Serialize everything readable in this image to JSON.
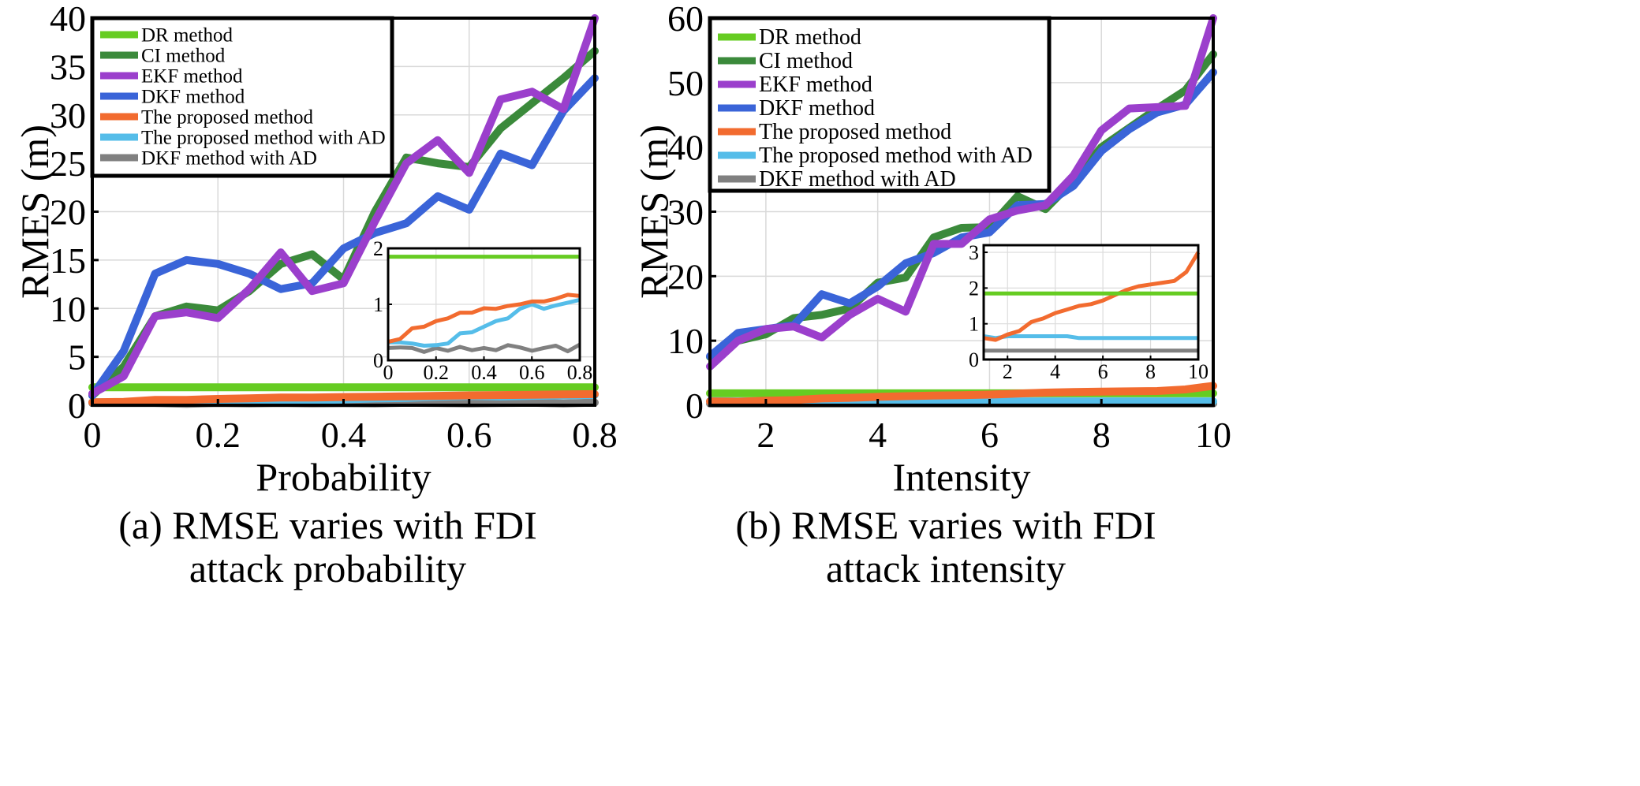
{
  "chart_data": [
    {
      "type": "line",
      "caption": [
        "(a) RMSE varies with FDI",
        "attack probability"
      ],
      "xlabel": "Probability",
      "ylabel": "RMES (m)",
      "xlim": [
        0,
        0.8
      ],
      "ylim": [
        0,
        40
      ],
      "xticks": [
        "0",
        "0.2",
        "0.4",
        "0.6",
        "0.8"
      ],
      "yticks": [
        "0",
        "5",
        "10",
        "15",
        "20",
        "25",
        "30",
        "35",
        "40"
      ],
      "grid": true,
      "legend_position": "top-left",
      "x": [
        0,
        0.05,
        0.1,
        0.15,
        0.2,
        0.25,
        0.3,
        0.35,
        0.4,
        0.45,
        0.5,
        0.55,
        0.6,
        0.65,
        0.7,
        0.75,
        0.8
      ],
      "series": [
        {
          "name": "DR method",
          "color": "#66cc22",
          "values": [
            1.85,
            1.85,
            1.85,
            1.85,
            1.85,
            1.85,
            1.85,
            1.85,
            1.85,
            1.85,
            1.85,
            1.85,
            1.85,
            1.85,
            1.85,
            1.85,
            1.85
          ]
        },
        {
          "name": "CI method",
          "color": "#3b8a3b",
          "values": [
            1.0,
            4.0,
            9.2,
            10.2,
            9.8,
            11.8,
            14.6,
            15.6,
            13.0,
            20.0,
            25.6,
            25.0,
            24.6,
            28.6,
            31.2,
            33.8,
            36.6
          ]
        },
        {
          "name": "EKF method",
          "color": "#9b3fcc",
          "values": [
            1.2,
            3.0,
            9.2,
            9.6,
            9.0,
            12.0,
            15.8,
            11.8,
            12.6,
            19.0,
            25.0,
            27.4,
            24.0,
            31.6,
            32.4,
            30.6,
            40.0
          ]
        },
        {
          "name": "DKF method",
          "color": "#3a64d8",
          "values": [
            1.0,
            5.6,
            13.6,
            15.0,
            14.6,
            13.6,
            12.0,
            12.6,
            16.2,
            17.8,
            18.8,
            21.6,
            20.2,
            26.0,
            24.8,
            30.4,
            33.8
          ]
        },
        {
          "name": "The proposed method",
          "color": "#f26b2f",
          "values": [
            0.3,
            0.35,
            0.55,
            0.55,
            0.65,
            0.72,
            0.8,
            0.8,
            0.85,
            0.88,
            0.92,
            0.97,
            1.02,
            1.05,
            1.08,
            1.12,
            1.15
          ]
        },
        {
          "name": "The proposed method with AD",
          "color": "#55bde9",
          "values": [
            0.3,
            0.3,
            0.28,
            0.25,
            0.27,
            0.3,
            0.45,
            0.5,
            0.6,
            0.7,
            0.75,
            0.88,
            0.95,
            0.9,
            0.97,
            1.02,
            1.07
          ]
        },
        {
          "name": "DKF method with AD",
          "color": "#808080",
          "values": [
            0.22,
            0.22,
            0.22,
            0.15,
            0.22,
            0.18,
            0.22,
            0.18,
            0.2,
            0.18,
            0.25,
            0.22,
            0.18,
            0.22,
            0.25,
            0.18,
            0.28
          ]
        }
      ],
      "inset": {
        "xlim": [
          0,
          0.8
        ],
        "ylim": [
          0,
          2
        ],
        "xticks": [
          "0",
          "0.2",
          "0.4",
          "0.6",
          "0.8"
        ],
        "yticks": [
          "0",
          "1",
          "2"
        ],
        "x": [
          0,
          0.05,
          0.1,
          0.15,
          0.2,
          0.25,
          0.3,
          0.35,
          0.4,
          0.45,
          0.5,
          0.55,
          0.6,
          0.65,
          0.7,
          0.75,
          0.8
        ],
        "series": [
          {
            "name": "DR method",
            "color": "#66cc22",
            "values": [
              1.85,
              1.85,
              1.85,
              1.85,
              1.85,
              1.85,
              1.85,
              1.85,
              1.85,
              1.85,
              1.85,
              1.85,
              1.85,
              1.85,
              1.85,
              1.85,
              1.85
            ]
          },
          {
            "name": "The proposed method",
            "color": "#f26b2f",
            "values": [
              0.33,
              0.38,
              0.57,
              0.6,
              0.7,
              0.75,
              0.85,
              0.85,
              0.93,
              0.92,
              0.97,
              1.0,
              1.05,
              1.05,
              1.1,
              1.17,
              1.15
            ]
          },
          {
            "name": "The proposed method with AD",
            "color": "#55bde9",
            "values": [
              0.32,
              0.32,
              0.3,
              0.26,
              0.27,
              0.3,
              0.48,
              0.5,
              0.6,
              0.7,
              0.75,
              0.92,
              1.0,
              0.92,
              0.98,
              1.03,
              1.08
            ]
          },
          {
            "name": "DKF method with AD",
            "color": "#808080",
            "values": [
              0.22,
              0.23,
              0.22,
              0.15,
              0.22,
              0.17,
              0.24,
              0.18,
              0.22,
              0.18,
              0.27,
              0.23,
              0.17,
              0.22,
              0.26,
              0.16,
              0.28
            ]
          }
        ]
      }
    },
    {
      "type": "line",
      "caption": [
        "(b) RMSE varies with FDI",
        "attack intensity"
      ],
      "xlabel": "Intensity",
      "ylabel": "RMES (m)",
      "xlim": [
        1,
        10
      ],
      "ylim": [
        0,
        60
      ],
      "xticks": [
        "2",
        "4",
        "6",
        "8",
        "10"
      ],
      "yticks": [
        "0",
        "10",
        "20",
        "30",
        "40",
        "50",
        "60"
      ],
      "grid": true,
      "legend_position": "top-left",
      "x": [
        1,
        1.5,
        2,
        2.5,
        3,
        3.5,
        4,
        4.5,
        5,
        5.5,
        6,
        6.5,
        7,
        7.5,
        8,
        8.5,
        9,
        9.5,
        10
      ],
      "series": [
        {
          "name": "DR method",
          "color": "#66cc22",
          "values": [
            1.85,
            1.85,
            1.85,
            1.85,
            1.85,
            1.85,
            1.85,
            1.85,
            1.85,
            1.85,
            1.85,
            1.85,
            1.85,
            1.85,
            1.85,
            1.85,
            1.85,
            1.85,
            1.85
          ]
        },
        {
          "name": "CI method",
          "color": "#3b8a3b",
          "values": [
            7.5,
            10.0,
            11.0,
            13.5,
            14.0,
            15.0,
            19.0,
            19.8,
            26.0,
            27.5,
            27.6,
            32.4,
            30.4,
            34.8,
            40.0,
            43.0,
            46.0,
            48.8,
            54.4
          ]
        },
        {
          "name": "EKF method",
          "color": "#9b3fcc",
          "values": [
            6.0,
            10.0,
            11.8,
            12.2,
            10.5,
            14.0,
            16.5,
            14.5,
            25.0,
            25.0,
            28.8,
            30.2,
            31.0,
            35.6,
            42.6,
            46.0,
            46.2,
            46.4,
            60.0
          ]
        },
        {
          "name": "DKF method",
          "color": "#3a64d8",
          "values": [
            7.6,
            11.2,
            11.8,
            12.4,
            17.2,
            15.8,
            18.4,
            22.0,
            23.6,
            26.0,
            26.8,
            31.0,
            31.2,
            34.0,
            39.4,
            42.8,
            45.4,
            46.6,
            51.6
          ]
        },
        {
          "name": "The proposed method",
          "color": "#f26b2f",
          "values": [
            0.6,
            0.55,
            0.7,
            0.8,
            1.05,
            1.15,
            1.3,
            1.4,
            1.5,
            1.55,
            1.65,
            1.8,
            1.95,
            2.05,
            2.1,
            2.15,
            2.2,
            2.45,
            3.0
          ]
        },
        {
          "name": "The proposed method with AD",
          "color": "#55bde9",
          "values": [
            0.65,
            0.6,
            0.65,
            0.65,
            0.65,
            0.65,
            0.65,
            0.65,
            0.6,
            0.6,
            0.6,
            0.6,
            0.6,
            0.6,
            0.6,
            0.6,
            0.6,
            0.6,
            0.6
          ]
        },
        {
          "name": "DKF method with AD",
          "color": "#808080",
          "values": [
            0.25,
            0.25,
            0.25,
            0.25,
            0.25,
            0.25,
            0.25,
            0.25,
            0.25,
            0.25,
            0.25,
            0.25,
            0.25,
            0.25,
            0.25,
            0.25,
            0.25,
            0.25,
            0.25
          ]
        }
      ],
      "inset": {
        "xlim": [
          1,
          10
        ],
        "ylim": [
          0,
          3.2
        ],
        "xticks": [
          "2",
          "4",
          "6",
          "8",
          "10"
        ],
        "yticks": [
          "0",
          "1",
          "2",
          "3"
        ],
        "x": [
          1,
          1.5,
          2,
          2.5,
          3,
          3.5,
          4,
          4.5,
          5,
          5.5,
          6,
          6.5,
          7,
          7.5,
          8,
          8.5,
          9,
          9.5,
          10
        ],
        "series": [
          {
            "name": "DR method",
            "color": "#66cc22",
            "values": [
              1.85,
              1.85,
              1.85,
              1.85,
              1.85,
              1.85,
              1.85,
              1.85,
              1.85,
              1.85,
              1.85,
              1.85,
              1.85,
              1.85,
              1.85,
              1.85,
              1.85,
              1.85,
              1.85
            ]
          },
          {
            "name": "The proposed method",
            "color": "#f26b2f",
            "values": [
              0.6,
              0.55,
              0.7,
              0.8,
              1.05,
              1.15,
              1.3,
              1.4,
              1.5,
              1.55,
              1.65,
              1.8,
              1.95,
              2.05,
              2.1,
              2.15,
              2.2,
              2.45,
              3.0
            ]
          },
          {
            "name": "The proposed method with AD",
            "color": "#55bde9",
            "values": [
              0.65,
              0.6,
              0.65,
              0.65,
              0.65,
              0.65,
              0.65,
              0.65,
              0.6,
              0.6,
              0.6,
              0.6,
              0.6,
              0.6,
              0.6,
              0.6,
              0.6,
              0.6,
              0.6
            ]
          },
          {
            "name": "DKF method with AD",
            "color": "#808080",
            "values": [
              0.25,
              0.25,
              0.25,
              0.25,
              0.25,
              0.25,
              0.25,
              0.25,
              0.25,
              0.25,
              0.25,
              0.25,
              0.25,
              0.25,
              0.25,
              0.25,
              0.25,
              0.25,
              0.25
            ]
          }
        ]
      }
    }
  ]
}
